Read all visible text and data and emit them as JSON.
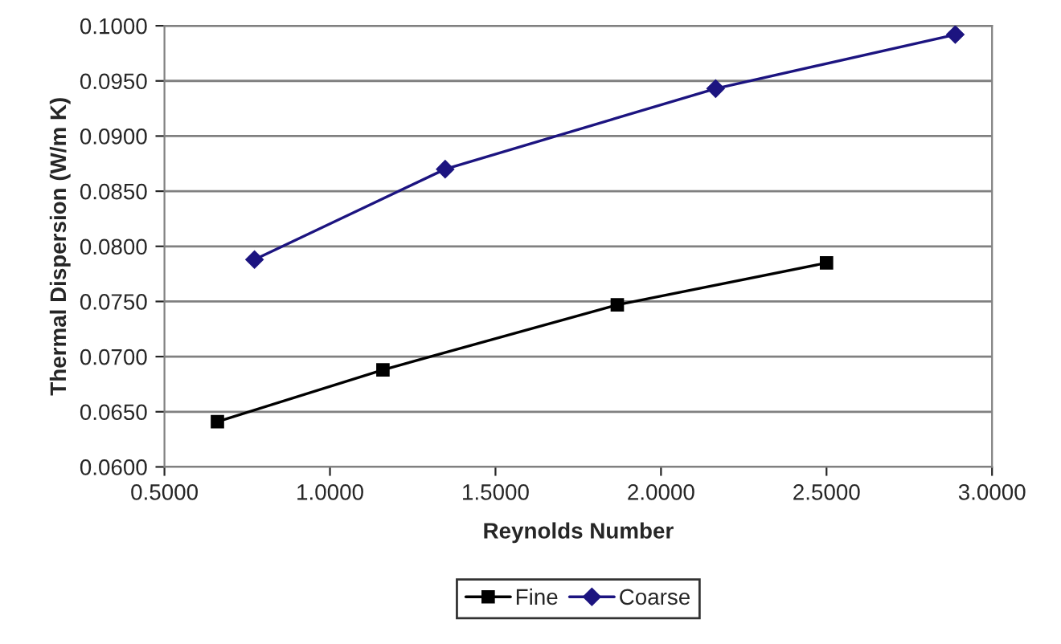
{
  "chart_data": {
    "type": "line",
    "xlabel": "Reynolds Number",
    "ylabel": "Thermal Dispersion (W/m K)",
    "series": [
      {
        "name": "Fine",
        "color": "#000000",
        "marker": "square",
        "x": [
          0.66,
          1.16,
          1.868,
          2.5
        ],
        "values": [
          0.0641,
          0.0688,
          0.0747,
          0.0785
        ]
      },
      {
        "name": "Coarse",
        "color": "#1c1480",
        "marker": "diamond",
        "x": [
          0.772,
          1.348,
          2.165,
          2.889
        ],
        "values": [
          0.0788,
          0.087,
          0.0943,
          0.0992
        ]
      }
    ],
    "xlim": [
      0.5,
      3.0
    ],
    "xticks": [
      {
        "value": 0.5,
        "label": "0.5000"
      },
      {
        "value": 1.0,
        "label": "1.0000"
      },
      {
        "value": 1.5,
        "label": "1.5000"
      },
      {
        "value": 2.0,
        "label": "2.0000"
      },
      {
        "value": 2.5,
        "label": "2.5000"
      },
      {
        "value": 3.0,
        "label": "3.0000"
      }
    ],
    "ylim": [
      0.06,
      0.1
    ],
    "yticks": [
      {
        "value": 0.06,
        "label": "0.0600"
      },
      {
        "value": 0.065,
        "label": "0.0650"
      },
      {
        "value": 0.07,
        "label": "0.0700"
      },
      {
        "value": 0.075,
        "label": "0.0750"
      },
      {
        "value": 0.08,
        "label": "0.0800"
      },
      {
        "value": 0.085,
        "label": "0.0850"
      },
      {
        "value": 0.09,
        "label": "0.0900"
      },
      {
        "value": 0.095,
        "label": "0.0950"
      },
      {
        "value": 0.1,
        "label": "0.1000"
      }
    ],
    "grid": "y",
    "legend": "bottom",
    "line_style": "solid"
  }
}
